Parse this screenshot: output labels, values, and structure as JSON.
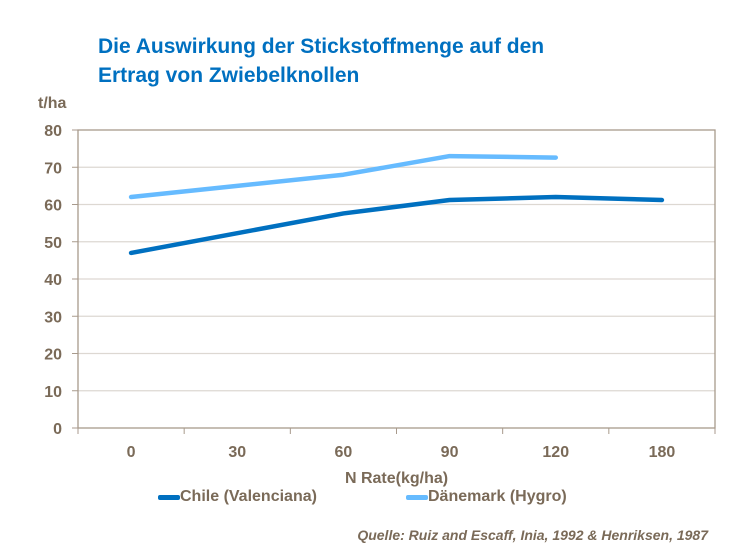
{
  "chart_data": {
    "type": "line",
    "title": "Die Auswirkung der Stickstoffmenge auf den Ertrag von Zwiebelknollen",
    "title_lines": [
      "Die Auswirkung der Stickstoffmenge auf den",
      "Ertrag von Zwiebelknollen"
    ],
    "xlabel": "N Rate(kg/ha)",
    "ylabel": "t/ha",
    "categories": [
      "0",
      "30",
      "60",
      "90",
      "120",
      "180"
    ],
    "ylim": [
      0,
      80
    ],
    "yticks": [
      0,
      10,
      20,
      30,
      40,
      50,
      60,
      70,
      80
    ],
    "grid": true,
    "legend_position": "bottom",
    "series": [
      {
        "name": "Chile (Valenciana)",
        "color": "#0070C0",
        "values": [
          47,
          52.3,
          57.6,
          61.2,
          62,
          61.2
        ]
      },
      {
        "name": "Dänemark (Hygro)",
        "color": "#66BBFF",
        "values": [
          62,
          65,
          68,
          73,
          72.6,
          null
        ]
      }
    ],
    "source": "Quelle: Ruiz and Escaff, Inia, 1992 & Henriksen, 1987"
  }
}
